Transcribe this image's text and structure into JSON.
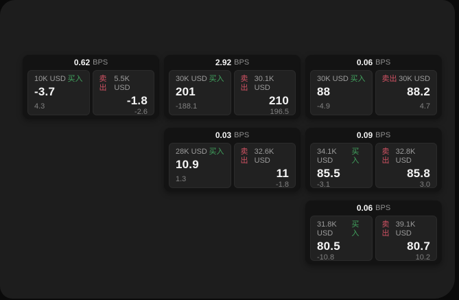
{
  "labels": {
    "bps": "BPS",
    "buy": "买入",
    "sell": "卖出"
  },
  "colors": {
    "buy": "#41a35e",
    "sell": "#d05263",
    "panel_bg": "#1d1d1d",
    "card_bg": "#131313",
    "pane_bg": "#212121"
  },
  "cards": [
    {
      "bps": "0.62",
      "row": 1,
      "col": 1,
      "buy": {
        "amount": "10K USD",
        "value": "-3.7",
        "sub": "4.3"
      },
      "sell": {
        "amount": "5.5K USD",
        "value": "-1.8",
        "sub": "-2.6"
      }
    },
    {
      "bps": "2.92",
      "row": 1,
      "col": 2,
      "buy": {
        "amount": "30K USD",
        "value": "201",
        "sub": "-188.1"
      },
      "sell": {
        "amount": "30.1K USD",
        "value": "210",
        "sub": "196.5"
      }
    },
    {
      "bps": "0.06",
      "row": 1,
      "col": 3,
      "buy": {
        "amount": "30K USD",
        "value": "88",
        "sub": "-4.9"
      },
      "sell": {
        "amount": "30K USD",
        "value": "88.2",
        "sub": "4.7"
      }
    },
    {
      "bps": "0.03",
      "row": 2,
      "col": 2,
      "buy": {
        "amount": "28K USD",
        "value": "10.9",
        "sub": "1.3"
      },
      "sell": {
        "amount": "32.6K USD",
        "value": "11",
        "sub": "-1.8"
      }
    },
    {
      "bps": "0.09",
      "row": 2,
      "col": 3,
      "buy": {
        "amount": "34.1K USD",
        "value": "85.5",
        "sub": "-3.1"
      },
      "sell": {
        "amount": "32.8K USD",
        "value": "85.8",
        "sub": "3.0"
      }
    },
    {
      "bps": "0.06",
      "row": 3,
      "col": 3,
      "buy": {
        "amount": "31.8K USD",
        "value": "80.5",
        "sub": "-10.8"
      },
      "sell": {
        "amount": "39.1K USD",
        "value": "80.7",
        "sub": "10.2"
      }
    }
  ]
}
